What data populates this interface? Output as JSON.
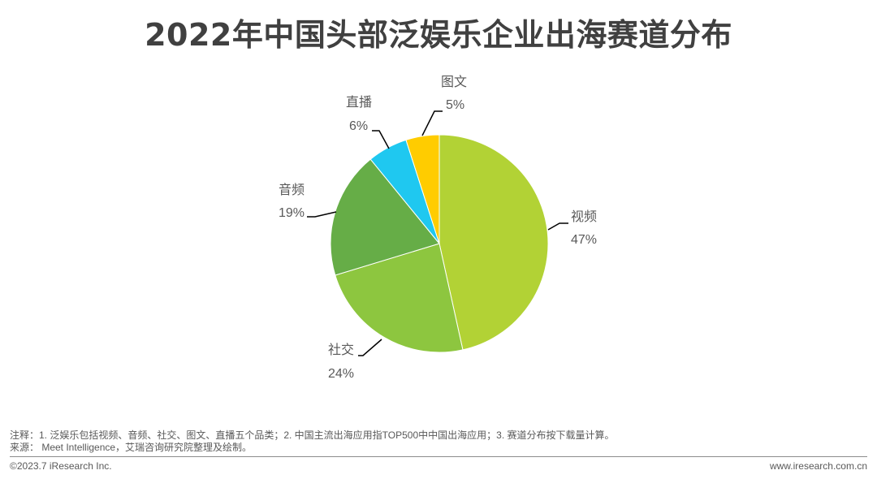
{
  "title": "2022年中国头部泛娱乐企业出海赛道分布",
  "chart_data": {
    "type": "pie",
    "title": "2022年中国头部泛娱乐企业出海赛道分布",
    "categories": [
      "视频",
      "社交",
      "音频",
      "直播",
      "图文"
    ],
    "values": [
      47,
      24,
      19,
      6,
      5
    ],
    "unit": "%",
    "colors": [
      "#B2D235",
      "#8DC63F",
      "#66AD47",
      "#1FC8F0",
      "#FFCC00"
    ],
    "start_angle": "12 o'clock",
    "direction": "clockwise",
    "labels": [
      {
        "name": "视频",
        "value": "47%"
      },
      {
        "name": "社交",
        "value": "24%"
      },
      {
        "name": "音频",
        "value": "19%"
      },
      {
        "name": "直播",
        "value": "6%"
      },
      {
        "name": "图文",
        "value": "5%"
      }
    ],
    "legend": "none (leader-line data labels)"
  },
  "notes": {
    "note": "注释：1. 泛娱乐包括视频、音频、社交、图文、直播五个品类；2. 中国主流出海应用指TOP500中中国出海应用；3. 赛道分布按下载量计算。",
    "source": "来源：  Meet Intelligence，艾瑞咨询研究院整理及绘制。"
  },
  "footer": {
    "copyright": "©2023.7 iResearch Inc.",
    "website": "www.iresearch.com.cn"
  }
}
